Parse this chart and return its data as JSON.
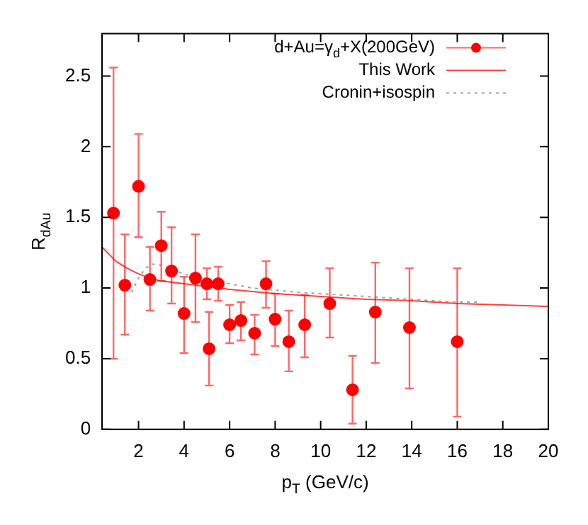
{
  "chart_data": {
    "type": "scatter",
    "xlabel": "p$_{T}$ (GeV/c)",
    "ylabel": "R$_{dAu}$",
    "xlim": [
      0.4,
      20
    ],
    "ylim": [
      0,
      2.8
    ],
    "xticks": [
      2,
      4,
      6,
      8,
      10,
      12,
      14,
      16,
      18,
      20
    ],
    "yticks": [
      0,
      0.5,
      1,
      1.5,
      2,
      2.5
    ],
    "grid": false,
    "legend": "top right",
    "series": [
      {
        "name": "d+Au=γ$_{d}$+X(200GeV)",
        "color": "#ff0000",
        "marker": "circle",
        "x": [
          0.9,
          1.4,
          2.0,
          2.5,
          3.0,
          3.45,
          4.0,
          4.5,
          5.0,
          5.1,
          5.5,
          6.0,
          6.5,
          7.1,
          7.6,
          8.0,
          8.6,
          9.3,
          10.4,
          11.4,
          12.4,
          13.9,
          16.0
        ],
        "values": [
          1.53,
          1.02,
          1.72,
          1.06,
          1.3,
          1.12,
          0.82,
          1.07,
          1.03,
          0.57,
          1.03,
          0.74,
          0.77,
          0.68,
          1.03,
          0.78,
          0.62,
          0.74,
          0.89,
          0.28,
          0.83,
          0.72,
          0.62
        ],
        "errors": [
          [
            0.5,
            2.56
          ],
          [
            0.67,
            1.38
          ],
          [
            1.36,
            2.09
          ],
          [
            0.84,
            1.29
          ],
          [
            1.05,
            1.54
          ],
          [
            0.89,
            1.43
          ],
          [
            0.54,
            1.08
          ],
          [
            0.76,
            1.38
          ],
          [
            0.92,
            1.14
          ],
          [
            0.31,
            0.83
          ],
          [
            0.91,
            1.15
          ],
          [
            0.61,
            0.88
          ],
          [
            0.63,
            0.9
          ],
          [
            0.53,
            0.81
          ],
          [
            0.86,
            1.19
          ],
          [
            0.59,
            0.96
          ],
          [
            0.41,
            0.84
          ],
          [
            0.51,
            0.95
          ],
          [
            0.65,
            1.14
          ],
          [
            0.04,
            0.52
          ],
          [
            0.47,
            1.18
          ],
          [
            0.29,
            1.14
          ],
          [
            0.09,
            1.14
          ]
        ]
      },
      {
        "name": "This Work",
        "type": "line",
        "color": "#ff4040",
        "marker": "none",
        "line_style": "solid",
        "x": [
          0.4,
          0.7,
          1,
          1.5,
          2,
          2.5,
          3,
          4,
          5,
          6,
          8,
          10,
          12,
          14,
          16,
          18,
          20
        ],
        "values": [
          1.29,
          1.24,
          1.19,
          1.14,
          1.1,
          1.07,
          1.05,
          1.03,
          1.01,
          0.99,
          0.96,
          0.94,
          0.92,
          0.91,
          0.89,
          0.88,
          0.87
        ]
      },
      {
        "name": "Cronin+isospin",
        "type": "line",
        "color": "#a0a0a0",
        "marker": "none",
        "line_style": "dotted",
        "x": [
          1.7,
          2,
          2.3,
          2.6,
          3,
          3.5,
          4,
          5,
          6,
          7,
          9,
          10,
          12,
          14,
          16,
          17
        ],
        "values": [
          0.97,
          1.07,
          1.14,
          1.17,
          1.16,
          1.13,
          1.1,
          1.06,
          1.03,
          1.0,
          0.97,
          0.96,
          0.94,
          0.92,
          0.9,
          0.9
        ]
      }
    ]
  }
}
